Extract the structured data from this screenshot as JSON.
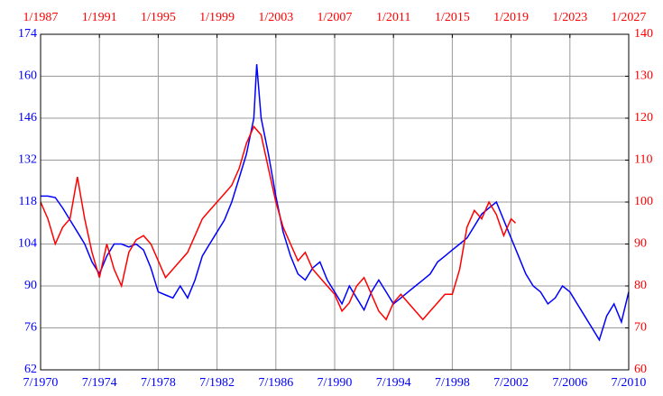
{
  "chart_data": {
    "type": "line",
    "xlim": [
      1970.5,
      2010.5
    ],
    "xticks": [
      {
        "value": 1970.5,
        "label": "7/1970"
      },
      {
        "value": 1974.5,
        "label": "7/1974"
      },
      {
        "value": 1978.5,
        "label": "7/1978"
      },
      {
        "value": 1982.5,
        "label": "7/1982"
      },
      {
        "value": 1986.5,
        "label": "7/1986"
      },
      {
        "value": 1990.5,
        "label": "7/1990"
      },
      {
        "value": 1994.5,
        "label": "7/1994"
      },
      {
        "value": 1998.5,
        "label": "7/1998"
      },
      {
        "value": 2002.5,
        "label": "7/2002"
      },
      {
        "value": 2006.5,
        "label": "7/2006"
      },
      {
        "value": 2010.5,
        "label": "7/2010"
      }
    ],
    "x2lim": [
      1987,
      2027
    ],
    "x2ticks": [
      {
        "value": 1987,
        "label": "1/1987"
      },
      {
        "value": 1991,
        "label": "1/1991"
      },
      {
        "value": 1995,
        "label": "1/1995"
      },
      {
        "value": 1999,
        "label": "1/1999"
      },
      {
        "value": 2003,
        "label": "1/2003"
      },
      {
        "value": 2007,
        "label": "1/2007"
      },
      {
        "value": 2011,
        "label": "1/2011"
      },
      {
        "value": 2015,
        "label": "1/2015"
      },
      {
        "value": 2019,
        "label": "1/2019"
      },
      {
        "value": 2023,
        "label": "1/2023"
      },
      {
        "value": 2027,
        "label": "1/2027"
      }
    ],
    "ylim": [
      62,
      174
    ],
    "yticks": [
      62,
      76,
      90,
      104,
      118,
      132,
      146,
      160,
      174
    ],
    "y2lim": [
      60,
      140
    ],
    "y2ticks": [
      60,
      70,
      80,
      90,
      100,
      110,
      120,
      130,
      140
    ],
    "grid": true,
    "series": [
      {
        "color": "#0000ff",
        "axis": "y",
        "x": [
          1970.5,
          1971,
          1971.5,
          1972,
          1972.5,
          1973,
          1973.5,
          1974,
          1974.5,
          1975,
          1975.5,
          1976,
          1976.5,
          1977,
          1977.5,
          1978,
          1978.5,
          1979,
          1979.5,
          1980,
          1980.5,
          1981,
          1981.5,
          1982,
          1982.5,
          1983,
          1983.5,
          1984,
          1984.5,
          1985,
          1985.2,
          1985.5,
          1986,
          1986.5,
          1987,
          1987.5,
          1988,
          1988.5,
          1989,
          1989.5,
          1990,
          1990.5,
          1991,
          1991.5,
          1992,
          1992.5,
          1993,
          1993.5,
          1994,
          1994.5,
          1995,
          1995.5,
          1996,
          1996.5,
          1997,
          1997.5,
          1998,
          1998.5,
          1999,
          1999.5,
          2000,
          2000.5,
          2001,
          2001.5,
          2002,
          2002.5,
          2003,
          2003.5,
          2004,
          2004.5,
          2005,
          2005.5,
          2006,
          2006.5,
          2007,
          2007.5,
          2008,
          2008.5,
          2009,
          2009.5,
          2010,
          2010.5
        ],
        "values": [
          120,
          120,
          119.5,
          116,
          112,
          108,
          104,
          98,
          94,
          100,
          104,
          104,
          103,
          104,
          102,
          96,
          88,
          87,
          86,
          90,
          86,
          92,
          100,
          104,
          108,
          112,
          118,
          126,
          134,
          146,
          164,
          146,
          134,
          120,
          108,
          100,
          94,
          92,
          96,
          98,
          92,
          88,
          84,
          90,
          86,
          82,
          88,
          92,
          88,
          84,
          86,
          88,
          90,
          92,
          94,
          98,
          100,
          102,
          104,
          106,
          110,
          114,
          116,
          118,
          112,
          106,
          100,
          94,
          90,
          88,
          84,
          86,
          90,
          88,
          84,
          80,
          76,
          72,
          80,
          84,
          78,
          88
        ]
      },
      {
        "color": "#ff0000",
        "axis": "y2",
        "xaxis": "x2",
        "x": [
          1987,
          1987.5,
          1988,
          1988.5,
          1989,
          1989.5,
          1990,
          1990.5,
          1991,
          1991.5,
          1992,
          1992.5,
          1993,
          1993.5,
          1994,
          1994.5,
          1995,
          1995.5,
          1996,
          1996.5,
          1997,
          1997.5,
          1998,
          1998.5,
          1999,
          1999.5,
          2000,
          2000.5,
          2001,
          2001.5,
          2002,
          2002.5,
          2003,
          2003.5,
          2004,
          2004.5,
          2005,
          2005.5,
          2006,
          2006.5,
          2007,
          2007.5,
          2008,
          2008.5,
          2009,
          2009.5,
          2010,
          2010.5,
          2011,
          2011.5,
          2012,
          2012.5,
          2013,
          2013.5,
          2014,
          2014.5,
          2015,
          2015.5,
          2016,
          2016.5,
          2017,
          2017.5,
          2018,
          2018.5,
          2019,
          2019.3
        ],
        "values": [
          100,
          96,
          90,
          94,
          96,
          106,
          96,
          88,
          82,
          90,
          84,
          80,
          88,
          91,
          92,
          90,
          86,
          82,
          84,
          86,
          88,
          92,
          96,
          98,
          100,
          102,
          104,
          108,
          114,
          118,
          116,
          108,
          100,
          94,
          90,
          86,
          88,
          84,
          82,
          80,
          78,
          74,
          76,
          80,
          82,
          78,
          74,
          72,
          76,
          78,
          76,
          74,
          72,
          74,
          76,
          78,
          78,
          84,
          94,
          98,
          96,
          100,
          97,
          92,
          96,
          95
        ]
      }
    ]
  }
}
